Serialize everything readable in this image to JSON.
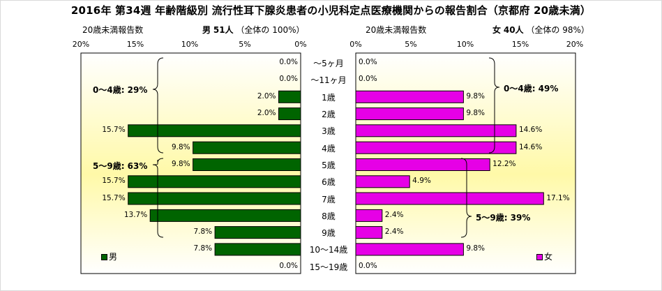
{
  "title": "2016年 第34週 年齢階級別 流行性耳下腺炎患者の小児科定点医療機関からの報告割合（京都府 20歳未満）",
  "left_header": {
    "caption": "20歳未満報告数",
    "sex": "男",
    "count": "51人",
    "share": "（全体の 100%）"
  },
  "right_header": {
    "caption": "20歳未満報告数",
    "sex": "女",
    "count": "40人",
    "share": "（全体の 98%）"
  },
  "left_ticks": [
    "20%",
    "15%",
    "10%",
    "5%",
    "0%"
  ],
  "right_ticks": [
    "0%",
    "5%",
    "10%",
    "15%",
    "20%"
  ],
  "legend": {
    "male": "男",
    "female": "女"
  },
  "colors": {
    "male": "#006400",
    "female": "#e600e6",
    "bg_light": "#ffffff",
    "bg_yellow": "#fff9a8"
  },
  "groups": {
    "male_0_4": "0～4歳: 29%",
    "male_5_9": "5～9歳: 63%",
    "female_0_4": "0～4歳: 49%",
    "female_5_9": "5～9歳: 39%"
  },
  "chart_data": {
    "type": "bar",
    "orientation": "horizontal-butterfly",
    "categories": [
      "～5ヶ月",
      "～11ヶ月",
      "1歳",
      "2歳",
      "3歳",
      "4歳",
      "5歳",
      "6歳",
      "7歳",
      "8歳",
      "9歳",
      "10～14歳",
      "15～19歳"
    ],
    "series": [
      {
        "name": "男",
        "values": [
          0.0,
          0.0,
          2.0,
          2.0,
          15.7,
          9.8,
          9.8,
          15.7,
          15.7,
          13.7,
          7.8,
          7.8,
          0.0
        ],
        "labels": [
          "0.0%",
          "0.0%",
          "2.0%",
          "2.0%",
          "15.7%",
          "9.8%",
          "9.8%",
          "15.7%",
          "15.7%",
          "13.7%",
          "7.8%",
          "7.8%",
          "0.0%"
        ]
      },
      {
        "name": "女",
        "values": [
          0.0,
          0.0,
          9.8,
          9.8,
          14.6,
          14.6,
          12.2,
          4.9,
          17.1,
          2.4,
          2.4,
          9.8,
          0.0
        ],
        "labels": [
          "0.0%",
          "0.0%",
          "9.8%",
          "9.8%",
          "14.6%",
          "14.6%",
          "12.2%",
          "4.9%",
          "17.1%",
          "2.4%",
          "2.4%",
          "9.8%",
          "0.0%"
        ]
      }
    ],
    "xlim": [
      0,
      20
    ],
    "xlabel": "",
    "ylabel": "",
    "legend_position": "bottom-inside"
  }
}
